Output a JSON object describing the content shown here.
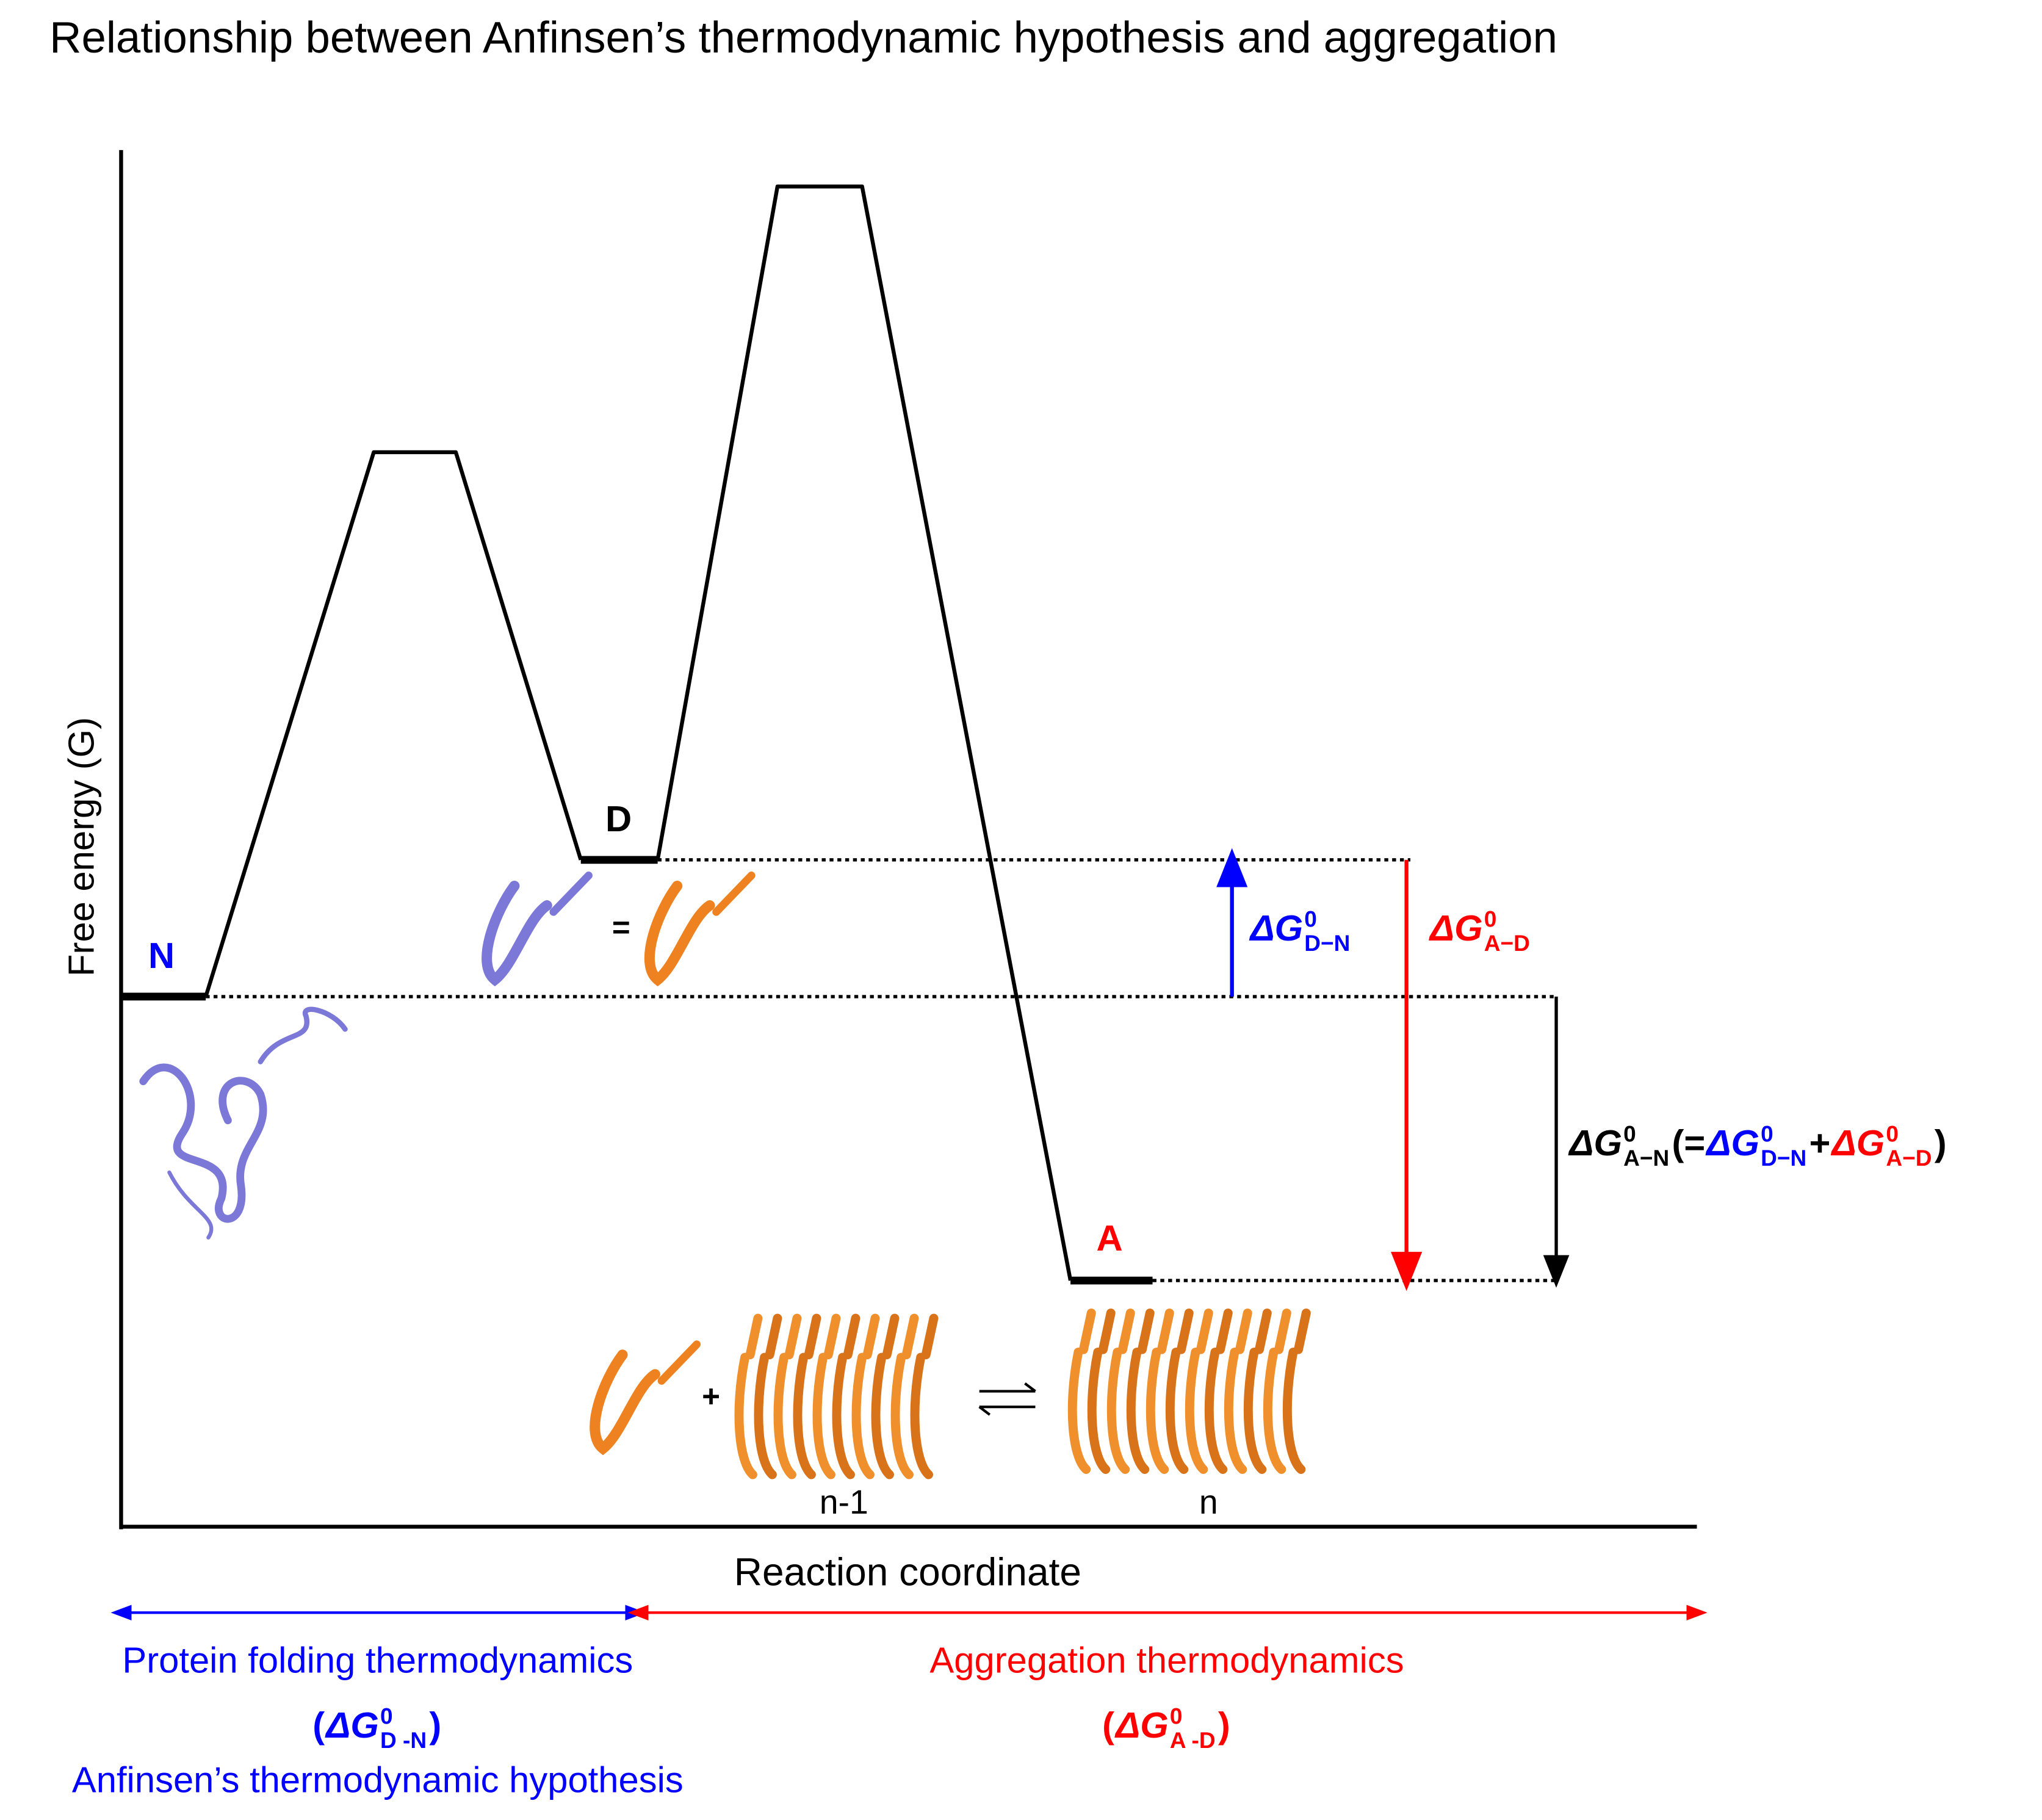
{
  "title": "Relationship between Anfinsen’s thermodynamic hypothesis and aggregation",
  "axes": {
    "y_label": "Free energy (G)",
    "x_label": "Reaction coordinate"
  },
  "states": {
    "native": "N",
    "denatured": "D",
    "aggregate": "A"
  },
  "energy_labels": {
    "dg_dn": [
      {
        "text": "ΔG",
        "role": "main",
        "color": "#0000ff"
      },
      {
        "text": "0",
        "role": "sup",
        "color": "#0000ff"
      },
      {
        "text": "D−N",
        "role": "sub",
        "color": "#0000ff"
      }
    ],
    "dg_ad": [
      {
        "text": "ΔG",
        "role": "main",
        "color": "#ff0000"
      },
      {
        "text": "0",
        "role": "sup",
        "color": "#ff0000"
      },
      {
        "text": "A−D",
        "role": "sub",
        "color": "#ff0000"
      }
    ],
    "dg_an": [
      {
        "text": "ΔG",
        "role": "main",
        "color": "#000000"
      },
      {
        "text": "0",
        "role": "sup",
        "color": "#000000"
      },
      {
        "text": "A−N",
        "role": "sub",
        "color": "#000000"
      },
      {
        "text": "(=",
        "role": "main",
        "color": "#000000"
      },
      {
        "text": "ΔG",
        "role": "main",
        "color": "#0000ff"
      },
      {
        "text": "0",
        "role": "sup",
        "color": "#0000ff"
      },
      {
        "text": "D−N",
        "role": "sub",
        "color": "#0000ff"
      },
      {
        "text": "+",
        "role": "main",
        "color": "#000000"
      },
      {
        "text": "ΔG",
        "role": "main",
        "color": "#ff0000"
      },
      {
        "text": "0",
        "role": "sup",
        "color": "#ff0000"
      },
      {
        "text": "A−D",
        "role": "sub",
        "color": "#ff0000"
      },
      {
        "text": ")",
        "role": "main",
        "color": "#000000"
      }
    ]
  },
  "regions": {
    "folding": {
      "title": "Protein folding thermodynamics",
      "color": "#0000ff",
      "formula": [
        {
          "text": "( ",
          "role": "main",
          "color": "#0000ff"
        },
        {
          "text": "ΔG",
          "role": "main",
          "color": "#0000ff"
        },
        {
          "text": "0",
          "role": "sup",
          "color": "#0000ff"
        },
        {
          "text": "D -N",
          "role": "sub",
          "color": "#0000ff"
        },
        {
          "text": ")",
          "role": "main",
          "color": "#0000ff"
        }
      ],
      "note": "Anfinsen’s thermodynamic hypothesis"
    },
    "aggregation": {
      "title": "Aggregation thermodynamics",
      "color": "#ff0000",
      "formula": [
        {
          "text": "(",
          "role": "main",
          "color": "#ff0000"
        },
        {
          "text": "ΔG",
          "role": "main",
          "color": "#ff0000"
        },
        {
          "text": "0",
          "role": "sup",
          "color": "#ff0000"
        },
        {
          "text": "A -D",
          "role": "sub",
          "color": "#ff0000"
        },
        {
          "text": ")",
          "role": "main",
          "color": "#ff0000"
        }
      ]
    }
  },
  "scheme": {
    "equals": "=",
    "plus": "+",
    "n_minus_1": "n-1",
    "n": "n"
  }
}
